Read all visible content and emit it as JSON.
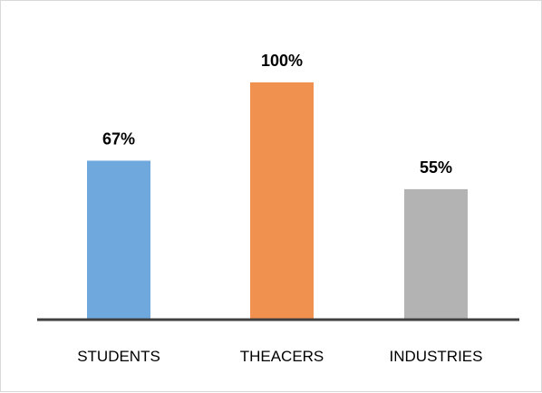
{
  "chart_data": {
    "type": "bar",
    "categories": [
      "STUDENTS",
      "THEACERS",
      "INDUSTRIES"
    ],
    "values": [
      67,
      100,
      55
    ],
    "data_labels": [
      "67%",
      "100%",
      "55%"
    ],
    "colors": [
      "#6fa8dc",
      "#f0914f",
      "#b3b3b3"
    ],
    "ylim": [
      0,
      100
    ],
    "grid": false,
    "title": "",
    "xlabel": "",
    "ylabel": ""
  }
}
